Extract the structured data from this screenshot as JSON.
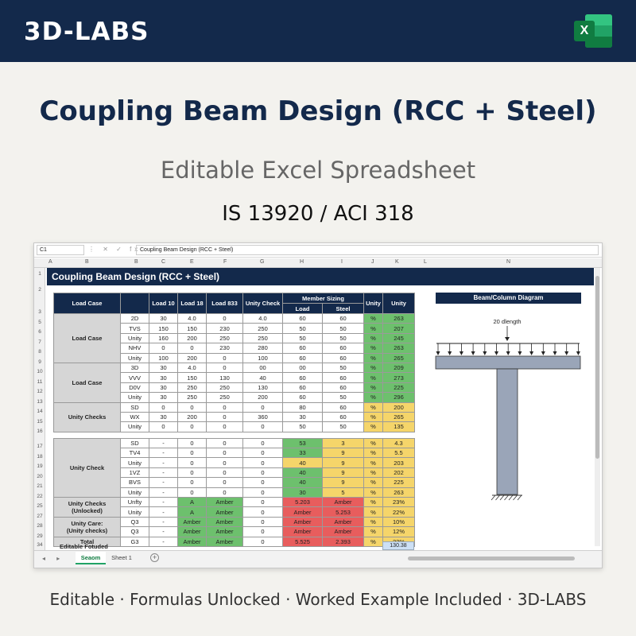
{
  "brand": "3D-LABS",
  "excel_icon": "excel-icon",
  "title": "Coupling Beam Design (RCC + Steel)",
  "subtitle": "Editable Excel Spreadsheet",
  "codes": "IS 13920 / ACI 318",
  "footer": "Editable · Formulas Unlocked · Worked Example Included · 3D-LABS",
  "colors": {
    "navy": "#13294b",
    "green": "#6dc06d",
    "amber": "#f5d56a",
    "red": "#e85d5d",
    "excel": "#107c41"
  },
  "spreadsheet": {
    "name_box": "C1",
    "formula_icons": "⋮ ✕ ✓ fx",
    "formula": "Coupling Beam Design (RCC + Steel)",
    "columns": [
      "A",
      "B",
      "B",
      "C",
      "E",
      "F",
      "G",
      "H",
      "I",
      "J",
      "K",
      "L",
      "N"
    ],
    "rows": [
      "1",
      "2",
      "3",
      "5",
      "6",
      "7",
      "8",
      "9",
      "10",
      "11",
      "12",
      "13",
      "14",
      "15",
      "16",
      "17",
      "18",
      "19",
      "20",
      "21",
      "22",
      "25",
      "27",
      "28",
      "29",
      "34"
    ],
    "sheet_title": "Coupling Beam Design (RCC + Steel)",
    "header": {
      "load_case": "Load Case",
      "load10": "Load 10",
      "load18": "Load 18",
      "load833": "Load 833",
      "unity_check": "Unity Check",
      "member_sizing": "Member Sizing",
      "load": "Load",
      "steel": "Steel",
      "unity1": "Unity",
      "unity2": "Unity"
    },
    "groups": [
      "Load Case",
      "Load Case",
      "Unity Checks",
      "Unity Check",
      "Unity Checks\n(Unlocked)",
      "Unity Care:\n(Unity checks)",
      "Total"
    ],
    "rows_data": [
      [
        "2D",
        "30",
        "4.0",
        "0",
        "4.0",
        "60",
        "60",
        "%",
        "263"
      ],
      [
        "TVS",
        "150",
        "150",
        "230",
        "250",
        "50",
        "50",
        "%",
        "207"
      ],
      [
        "Unity",
        "160",
        "200",
        "250",
        "250",
        "50",
        "50",
        "%",
        "245"
      ],
      [
        "NHV",
        "0",
        "0",
        "230",
        "280",
        "60",
        "60",
        "%",
        "263"
      ],
      [
        "Unity",
        "100",
        "200",
        "0",
        "100",
        "60",
        "60",
        "%",
        "265"
      ],
      [
        "3D",
        "30",
        "4.0",
        "0",
        "00",
        "00",
        "50",
        "%",
        "209"
      ],
      [
        "VVV",
        "30",
        "150",
        "130",
        "40",
        "60",
        "60",
        "%",
        "273"
      ],
      [
        "D0V",
        "30",
        "250",
        "250",
        "130",
        "60",
        "60",
        "%",
        "225"
      ],
      [
        "Unity",
        "30",
        "250",
        "250",
        "200",
        "60",
        "50",
        "%",
        "296"
      ],
      [
        "SD",
        "0",
        "0",
        "0",
        "0",
        "80",
        "60",
        "%",
        "200"
      ],
      [
        "WX",
        "30",
        "200",
        "0",
        "360",
        "30",
        "60",
        "%",
        "265"
      ],
      [
        "Unity",
        "0",
        "0",
        "0",
        "0",
        "50",
        "50",
        "%",
        "135"
      ],
      [
        "SD",
        "-",
        "0",
        "0",
        "0",
        "53",
        "3",
        "%",
        "4.3"
      ],
      [
        "TV4",
        "-",
        "0",
        "0",
        "0",
        "33",
        "9",
        "%",
        "5.5"
      ],
      [
        "Unity",
        "-",
        "0",
        "0",
        "0",
        "40",
        "9",
        "%",
        "203"
      ],
      [
        "1VZ",
        "-",
        "0",
        "0",
        "0",
        "40",
        "9",
        "%",
        "202"
      ],
      [
        "BVS",
        "-",
        "0",
        "0",
        "0",
        "40",
        "9",
        "%",
        "225"
      ],
      [
        "Unity",
        "-",
        "0",
        "0",
        "0",
        "30",
        "5",
        "%",
        "263"
      ],
      [
        "Unfty",
        "-",
        "A",
        "Amber",
        "0",
        "5.203",
        "Amber",
        "%",
        "23%"
      ],
      [
        "Unity",
        "-",
        "A",
        "Amber",
        "0",
        "Amber",
        "5.253",
        "%",
        "22%"
      ],
      [
        "Q3",
        "-",
        "Amber",
        "Amber",
        "0",
        "Amber",
        "Amber",
        "%",
        "10%"
      ],
      [
        "Q3",
        "-",
        "Amber",
        "Amber",
        "0",
        "Amber",
        "Amber",
        "%",
        "12%"
      ],
      [
        "G3",
        "-",
        "Amber",
        "Amber",
        "0",
        "5.525",
        "2.393",
        "%",
        "23%"
      ]
    ],
    "editable_label": "Editable Fotuded",
    "editable_value": "130.38",
    "diagram_title": "Beam/Column Diagram",
    "diagram_label": "20 dlength",
    "tab_nav": "◂ ▸",
    "tabs": [
      "Seaom",
      "Sheet 1"
    ],
    "add_sheet": "+"
  }
}
